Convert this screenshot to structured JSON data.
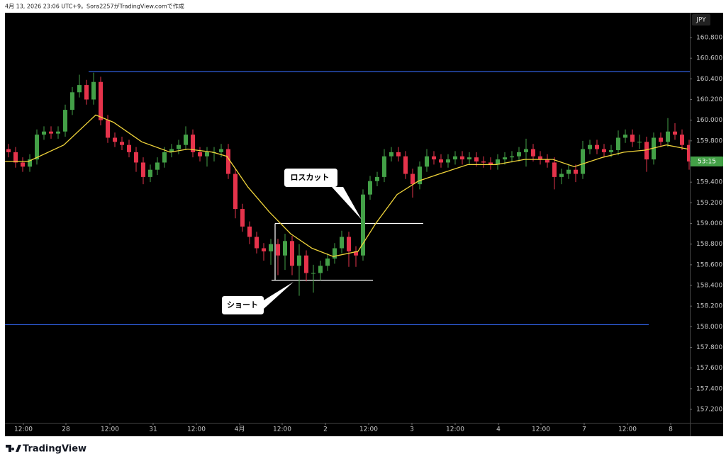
{
  "header": "4月 13, 2026 23:06 UTC+9。Sora2257がTradingView.comで作成",
  "brand": "TradingView",
  "chart_data": {
    "type": "candlestick",
    "currency": "JPY",
    "price_label": "53:15",
    "up_color": "#43a047",
    "down_color": "#e5334b",
    "xlim": [
      -0.5,
      96.1
    ],
    "ylim": [
      157.07,
      161.04
    ],
    "grid": false,
    "xticks": [
      {
        "value": 2.1,
        "label": "12:00"
      },
      {
        "value": 8.1,
        "label": "28"
      },
      {
        "value": 14.3,
        "label": "12:00"
      },
      {
        "value": 20.4,
        "label": "31"
      },
      {
        "value": 26.5,
        "label": "12:00"
      },
      {
        "value": 32.6,
        "label": "4月"
      },
      {
        "value": 38.6,
        "label": "12:00"
      },
      {
        "value": 44.7,
        "label": "2"
      },
      {
        "value": 50.8,
        "label": "12:00"
      },
      {
        "value": 56.9,
        "label": "3"
      },
      {
        "value": 63.0,
        "label": "12:00"
      },
      {
        "value": 69.1,
        "label": "4"
      },
      {
        "value": 75.1,
        "label": "12:00"
      },
      {
        "value": 81.2,
        "label": "7"
      },
      {
        "value": 87.3,
        "label": "12:00"
      },
      {
        "value": 93.4,
        "label": "8"
      }
    ],
    "yticks": [
      {
        "value": 160.8,
        "label": "160.800"
      },
      {
        "value": 160.6,
        "label": "160.600"
      },
      {
        "value": 160.4,
        "label": "160.400"
      },
      {
        "value": 160.2,
        "label": "160.200"
      },
      {
        "value": 160.0,
        "label": "160.000"
      },
      {
        "value": 159.8,
        "label": "159.800"
      },
      {
        "value": 159.6,
        "label": "159.600"
      },
      {
        "value": 159.4,
        "label": "159.400"
      },
      {
        "value": 159.2,
        "label": "159.200"
      },
      {
        "value": 159.0,
        "label": "159.000"
      },
      {
        "value": 158.8,
        "label": "158.800"
      },
      {
        "value": 158.6,
        "label": "158.600"
      },
      {
        "value": 158.4,
        "label": "158.400"
      },
      {
        "value": 158.2,
        "label": "158.200"
      },
      {
        "value": 158.0,
        "label": "158.000"
      },
      {
        "value": 157.8,
        "label": "157.800"
      },
      {
        "value": 157.6,
        "label": "157.600"
      },
      {
        "value": 157.4,
        "label": "157.400"
      },
      {
        "value": 157.2,
        "label": "157.200"
      }
    ],
    "open": [
      159.72,
      159.69,
      159.59,
      159.55,
      159.62,
      159.86,
      159.89,
      159.87,
      159.89,
      160.1,
      160.27,
      160.34,
      160.2,
      160.37,
      160.0,
      159.83,
      159.79,
      159.76,
      159.69,
      159.59,
      159.45,
      159.52,
      159.59,
      159.69,
      159.72,
      159.76,
      159.86,
      159.69,
      159.65,
      159.69,
      159.69,
      159.72,
      159.48,
      159.14,
      158.97,
      158.87,
      158.76,
      158.73,
      158.8,
      158.69,
      158.83,
      158.59,
      158.69,
      158.52,
      158.52,
      158.59,
      158.66,
      158.76,
      158.87,
      158.73,
      158.69,
      159.28,
      159.41,
      159.45,
      159.65,
      159.69,
      159.65,
      159.48,
      159.38,
      159.55,
      159.65,
      159.62,
      159.59,
      159.62,
      159.65,
      159.62,
      159.64,
      159.6,
      159.59,
      159.57,
      159.62,
      159.64,
      159.65,
      159.69,
      159.72,
      159.65,
      159.62,
      159.59,
      159.45,
      159.48,
      159.52,
      159.48,
      159.72,
      159.76,
      159.72,
      159.69,
      159.71,
      159.83,
      159.86,
      159.79,
      159.79,
      159.62,
      159.83,
      159.79,
      159.89,
      159.86,
      159.76
    ],
    "high": [
      159.77,
      159.74,
      159.64,
      159.67,
      159.91,
      159.94,
      159.94,
      159.94,
      160.15,
      160.32,
      160.44,
      160.39,
      160.46,
      160.42,
      160.05,
      159.88,
      159.84,
      159.81,
      159.74,
      159.64,
      159.57,
      159.64,
      159.74,
      159.77,
      159.81,
      159.94,
      159.91,
      159.74,
      159.74,
      159.74,
      159.77,
      159.77,
      159.53,
      159.19,
      159.02,
      158.92,
      158.81,
      158.85,
      158.85,
      158.9,
      158.88,
      158.8,
      158.74,
      158.6,
      158.64,
      158.71,
      158.81,
      158.93,
      158.92,
      158.78,
      159.33,
      159.46,
      159.5,
      159.72,
      159.74,
      159.74,
      159.7,
      159.53,
      159.6,
      159.72,
      159.7,
      159.67,
      159.67,
      159.7,
      159.7,
      159.69,
      159.69,
      159.65,
      159.64,
      159.67,
      159.69,
      159.7,
      159.74,
      159.82,
      159.77,
      159.7,
      159.67,
      159.64,
      159.53,
      159.57,
      159.57,
      159.8,
      159.81,
      159.81,
      159.77,
      159.76,
      159.9,
      159.91,
      159.91,
      159.86,
      159.84,
      159.88,
      159.88,
      160.02,
      159.97,
      159.91,
      159.81
    ],
    "low": [
      159.64,
      159.54,
      159.5,
      159.5,
      159.57,
      159.81,
      159.82,
      159.82,
      159.84,
      160.05,
      160.22,
      160.15,
      160.15,
      159.95,
      159.78,
      159.74,
      159.71,
      159.64,
      159.5,
      159.38,
      159.4,
      159.47,
      159.54,
      159.64,
      159.67,
      159.71,
      159.64,
      159.6,
      159.55,
      159.6,
      159.64,
      159.43,
      159.05,
      158.92,
      158.8,
      158.71,
      158.64,
      158.6,
      158.5,
      158.55,
      158.5,
      158.3,
      158.44,
      158.33,
      158.45,
      158.54,
      158.61,
      158.71,
      158.58,
      158.58,
      158.64,
      159.23,
      159.36,
      159.4,
      159.6,
      159.6,
      159.43,
      159.25,
      159.33,
      159.5,
      159.57,
      159.54,
      159.54,
      159.57,
      159.57,
      159.57,
      159.55,
      159.54,
      159.52,
      159.52,
      159.57,
      159.59,
      159.6,
      159.55,
      159.6,
      159.57,
      159.54,
      159.33,
      159.38,
      159.43,
      159.4,
      159.43,
      159.67,
      159.67,
      159.64,
      159.64,
      159.66,
      159.78,
      159.74,
      159.72,
      159.5,
      159.57,
      159.74,
      159.74,
      159.81,
      159.71,
      159.52
    ],
    "close": [
      159.69,
      159.59,
      159.55,
      159.62,
      159.86,
      159.89,
      159.87,
      159.89,
      160.1,
      160.27,
      160.34,
      160.2,
      160.37,
      160.0,
      159.83,
      159.79,
      159.76,
      159.69,
      159.59,
      159.45,
      159.52,
      159.59,
      159.69,
      159.72,
      159.76,
      159.86,
      159.69,
      159.65,
      159.69,
      159.69,
      159.72,
      159.48,
      159.14,
      158.97,
      158.87,
      158.76,
      158.73,
      158.8,
      158.69,
      158.83,
      158.59,
      158.69,
      158.52,
      158.52,
      158.59,
      158.66,
      158.76,
      158.87,
      158.73,
      158.69,
      159.28,
      159.41,
      159.45,
      159.65,
      159.69,
      159.65,
      159.48,
      159.38,
      159.55,
      159.65,
      159.62,
      159.59,
      159.62,
      159.65,
      159.62,
      159.64,
      159.6,
      159.59,
      159.57,
      159.62,
      159.64,
      159.65,
      159.69,
      159.72,
      159.65,
      159.62,
      159.59,
      159.45,
      159.48,
      159.52,
      159.48,
      159.72,
      159.76,
      159.72,
      159.69,
      159.71,
      159.83,
      159.86,
      159.79,
      159.79,
      159.62,
      159.83,
      159.79,
      159.89,
      159.86,
      159.76,
      159.6
    ],
    "moving_average": {
      "color": "#f0d43a",
      "x": [
        -0.5,
        2.8,
        7.8,
        12.3,
        14.8,
        18.8,
        22.8,
        25.3,
        28.8,
        30.8,
        33.8,
        36.8,
        39.8,
        42.8,
        45.8,
        49.3,
        51.8,
        54.8,
        57.8,
        60.8,
        64.8,
        68.8,
        72.8,
        76.8,
        79.8,
        83.8,
        86.8,
        89.8,
        92.8,
        95.8
      ],
      "values": [
        159.6,
        159.6,
        159.76,
        160.05,
        159.98,
        159.79,
        159.69,
        159.72,
        159.69,
        159.65,
        159.35,
        159.11,
        158.9,
        158.76,
        158.68,
        158.73,
        159.0,
        159.28,
        159.41,
        159.48,
        159.57,
        159.57,
        159.62,
        159.62,
        159.55,
        159.64,
        159.69,
        159.71,
        159.76,
        159.72
      ]
    },
    "segments": [
      {
        "color": "#2f5fe0",
        "x": [
          11.3,
          96.1
        ],
        "y": [
          160.47,
          160.47
        ]
      },
      {
        "color": "#2f5fe0",
        "x": [
          -0.5,
          90.3
        ],
        "y": [
          158.02,
          158.02
        ]
      },
      {
        "color": "#ffffff",
        "x": [
          37.6,
          58.5
        ],
        "y": [
          159.0,
          159.0
        ]
      },
      {
        "color": "#ffffff",
        "x": [
          37.1,
          51.4
        ],
        "y": [
          158.45,
          158.45
        ]
      },
      {
        "color": "#ffffff",
        "x": [
          37.6,
          37.6
        ],
        "y": [
          158.45,
          159.0
        ]
      }
    ],
    "annotations": [
      "ロスカット",
      "ショート"
    ]
  }
}
